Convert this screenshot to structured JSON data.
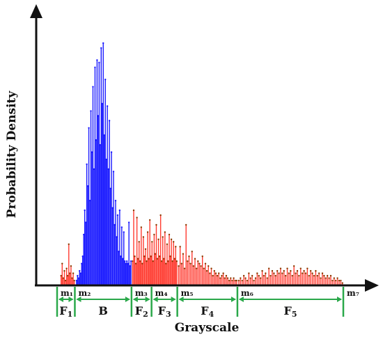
{
  "chart_data": {
    "type": "bar",
    "xlabel": "Grayscale",
    "ylabel": "Probability Density",
    "ylim": [
      0,
      1
    ],
    "xlim": [
      0,
      1
    ],
    "grid": false,
    "colors": {
      "background_bins": "#1a1aff",
      "foreground_bins": "#ff3b30",
      "stem_tip": "#8b3a00",
      "marker": "#2aa84a",
      "axis": "#111111"
    },
    "thresholds": [
      {
        "label": "m₁",
        "x": 0.0
      },
      {
        "label": "m₂",
        "x": 0.062
      },
      {
        "label": "m₃",
        "x": 0.26
      },
      {
        "label": "m₄",
        "x": 0.33
      },
      {
        "label": "m₅",
        "x": 0.42
      },
      {
        "label": "m₆",
        "x": 0.63
      },
      {
        "label": "m₇",
        "x": 1.0
      }
    ],
    "regions": [
      {
        "label": "F",
        "sub": "1",
        "from": 0,
        "to": 1
      },
      {
        "label": "B",
        "sub": "",
        "from": 1,
        "to": 2
      },
      {
        "label": "F",
        "sub": "2",
        "from": 2,
        "to": 3
      },
      {
        "label": "F",
        "sub": "3",
        "from": 3,
        "to": 4
      },
      {
        "label": "F",
        "sub": "4",
        "from": 4,
        "to": 5
      },
      {
        "label": "F",
        "sub": "5",
        "from": 5,
        "to": 6
      }
    ],
    "series": [
      {
        "class": "foreground",
        "x_range": [
          0.012,
          0.062
        ],
        "values": [
          0.04,
          0.09,
          0.03,
          0.06,
          0.02,
          0.07,
          0.04,
          0.17,
          0.05,
          0.08,
          0.03,
          0.05,
          0.02
        ]
      },
      {
        "class": "background",
        "x_range": [
          0.066,
          0.26
        ],
        "values": [
          0.02,
          0.04,
          0.03,
          0.06,
          0.05,
          0.09,
          0.12,
          0.21,
          0.31,
          0.26,
          0.5,
          0.41,
          0.65,
          0.35,
          0.72,
          0.55,
          0.82,
          0.48,
          0.9,
          0.6,
          0.93,
          0.7,
          0.92,
          0.58,
          0.98,
          0.75,
          1.0,
          0.62,
          0.85,
          0.52,
          0.74,
          0.48,
          0.68,
          0.4,
          0.55,
          0.32,
          0.47,
          0.25,
          0.35,
          0.2,
          0.29,
          0.14,
          0.31,
          0.12,
          0.24,
          0.11,
          0.22,
          0.1,
          0.09,
          0.1,
          0.09,
          0.26,
          0.08,
          0.1
        ]
      },
      {
        "class": "foreground",
        "x_range": [
          0.262,
          0.42
        ],
        "values": [
          0.1,
          0.31,
          0.12,
          0.09,
          0.28,
          0.11,
          0.18,
          0.1,
          0.24,
          0.09,
          0.2,
          0.12,
          0.15,
          0.1,
          0.22,
          0.11,
          0.27,
          0.12,
          0.18,
          0.1,
          0.21,
          0.13,
          0.25,
          0.11,
          0.19,
          0.12,
          0.29,
          0.1,
          0.2,
          0.11,
          0.22,
          0.09,
          0.17,
          0.1,
          0.21,
          0.12,
          0.19,
          0.1,
          0.18,
          0.11,
          0.16,
          0.1
        ]
      },
      {
        "class": "foreground",
        "x_range": [
          0.422,
          0.63
        ],
        "values": [
          0.08,
          0.16,
          0.09,
          0.13,
          0.07,
          0.25,
          0.1,
          0.12,
          0.09,
          0.14,
          0.08,
          0.11,
          0.07,
          0.1,
          0.09,
          0.08,
          0.12,
          0.07,
          0.09,
          0.06,
          0.08,
          0.05,
          0.07,
          0.04,
          0.06,
          0.05,
          0.04,
          0.05,
          0.03,
          0.04,
          0.05,
          0.03,
          0.04,
          0.03,
          0.02,
          0.03,
          0.02,
          0.03,
          0.02,
          0.02
        ]
      },
      {
        "class": "foreground",
        "x_range": [
          0.632,
          1.0
        ],
        "values": [
          0.02,
          0.03,
          0.02,
          0.04,
          0.03,
          0.02,
          0.05,
          0.03,
          0.04,
          0.02,
          0.03,
          0.05,
          0.04,
          0.03,
          0.06,
          0.04,
          0.05,
          0.03,
          0.07,
          0.04,
          0.06,
          0.05,
          0.04,
          0.06,
          0.05,
          0.07,
          0.05,
          0.06,
          0.04,
          0.07,
          0.05,
          0.06,
          0.04,
          0.08,
          0.05,
          0.06,
          0.04,
          0.07,
          0.05,
          0.06,
          0.05,
          0.07,
          0.04,
          0.06,
          0.05,
          0.04,
          0.06,
          0.04,
          0.05,
          0.03,
          0.05,
          0.04,
          0.03,
          0.04,
          0.03,
          0.04,
          0.02,
          0.03,
          0.02,
          0.03,
          0.02,
          0.02,
          0.01
        ]
      }
    ]
  }
}
